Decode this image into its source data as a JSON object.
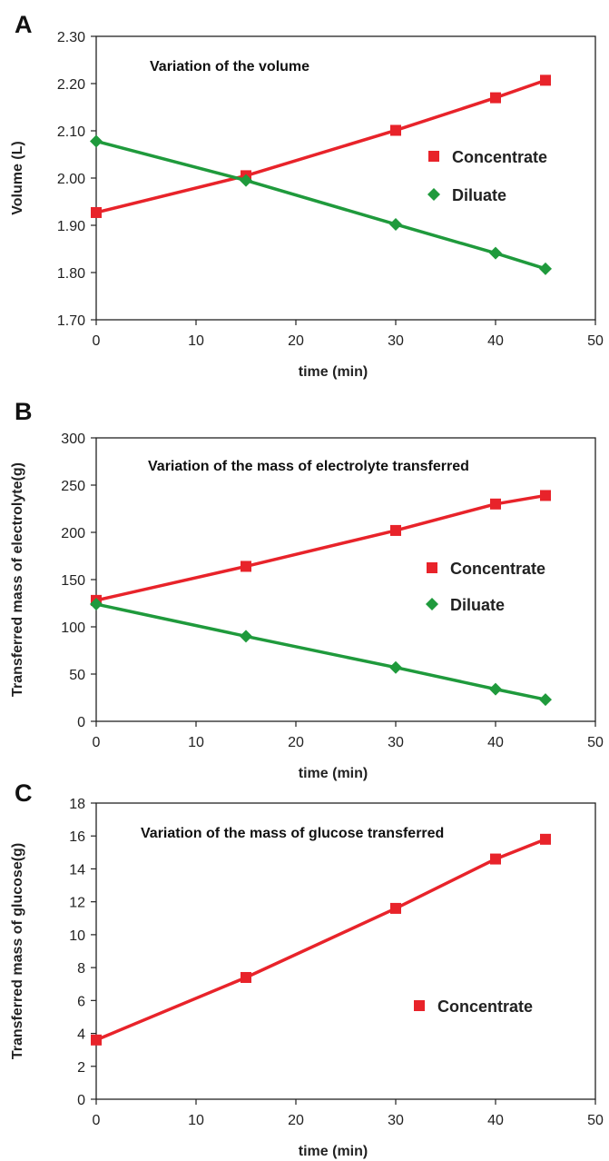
{
  "colors": {
    "concentrate": "#e8232a",
    "diluate": "#1f9a3c",
    "axis": "#222222"
  },
  "chart_data": [
    {
      "panel": "A",
      "type": "line",
      "title": "Variation of the volume",
      "xlabel": "time (min)",
      "ylabel": "Volume (L)",
      "xlim": [
        0,
        50
      ],
      "ylim": [
        1.7,
        2.3
      ],
      "xticks": [
        "0",
        "10",
        "20",
        "30",
        "40",
        "50"
      ],
      "yticks": [
        "1.70",
        "1.80",
        "1.90",
        "2.00",
        "2.10",
        "2.20",
        "2.30"
      ],
      "grid": false,
      "legend_position": "right",
      "series": [
        {
          "name": "Concentrate",
          "marker": "square",
          "color": "#e8232a",
          "x": [
            0,
            15,
            30,
            40,
            45
          ],
          "y": [
            1.927,
            2.005,
            2.101,
            2.17,
            2.207
          ]
        },
        {
          "name": "Diluate",
          "marker": "diamond",
          "color": "#1f9a3c",
          "x": [
            0,
            15,
            30,
            40,
            45
          ],
          "y": [
            2.078,
            1.995,
            1.902,
            1.841,
            1.808
          ]
        }
      ]
    },
    {
      "panel": "B",
      "type": "line",
      "title": "Variation of the mass of electrolyte transferred",
      "xlabel": "time (min)",
      "ylabel": "Transferred mass of electrolyte(g)",
      "xlim": [
        0,
        50
      ],
      "ylim": [
        0,
        300
      ],
      "xticks": [
        "0",
        "10",
        "20",
        "30",
        "40",
        "50"
      ],
      "yticks": [
        "0",
        "50",
        "100",
        "150",
        "200",
        "250",
        "300"
      ],
      "grid": false,
      "legend_position": "right",
      "series": [
        {
          "name": "Concentrate",
          "marker": "square",
          "color": "#e8232a",
          "x": [
            0,
            15,
            30,
            40,
            45
          ],
          "y": [
            128,
            164,
            202,
            230,
            239
          ]
        },
        {
          "name": "Diluate",
          "marker": "diamond",
          "color": "#1f9a3c",
          "x": [
            0,
            15,
            30,
            40,
            45
          ],
          "y": [
            124,
            90,
            57,
            34,
            23
          ]
        }
      ]
    },
    {
      "panel": "C",
      "type": "line",
      "title": "Variation of the mass of glucose transferred",
      "xlabel": "time (min)",
      "ylabel": "Transferred mass of glucose(g)",
      "xlim": [
        0,
        50
      ],
      "ylim": [
        0,
        18
      ],
      "xticks": [
        "0",
        "10",
        "20",
        "30",
        "40",
        "50"
      ],
      "yticks": [
        "0",
        "2",
        "4",
        "6",
        "8",
        "10",
        "12",
        "14",
        "16",
        "18"
      ],
      "grid": false,
      "legend_position": "right",
      "series": [
        {
          "name": "Concentrate",
          "marker": "square",
          "color": "#e8232a",
          "x": [
            0,
            15,
            30,
            40,
            45
          ],
          "y": [
            3.6,
            7.4,
            11.6,
            14.6,
            15.8
          ]
        }
      ]
    }
  ]
}
